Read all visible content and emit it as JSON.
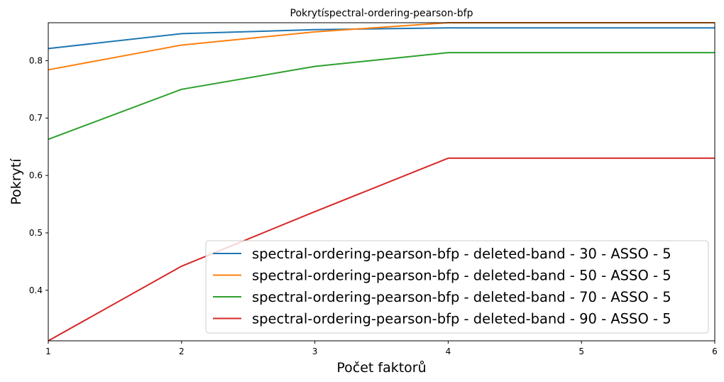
{
  "chart_data": {
    "type": "line",
    "title": "Pokrytíspectral-ordering-pearson-bfp",
    "xlabel": "Počet faktorů",
    "ylabel": "Pokrytí",
    "xlim": [
      1,
      6
    ],
    "ylim": [
      0.312,
      0.866
    ],
    "x": [
      1,
      2,
      3,
      4,
      5,
      6
    ],
    "xticks": [
      1,
      2,
      3,
      4,
      5,
      6
    ],
    "yticks": [
      0.4,
      0.5,
      0.6,
      0.7,
      0.8
    ],
    "grid": false,
    "legend_position": "lower-right",
    "series": [
      {
        "name": "spectral-ordering-pearson-bfp - deleted-band - 30 - ASSO - 5",
        "color": "#1f77b4",
        "values": [
          0.821,
          0.847,
          0.854,
          0.857,
          0.857,
          0.857
        ]
      },
      {
        "name": "spectral-ordering-pearson-bfp - deleted-band - 50 - ASSO - 5",
        "color": "#ff7f0e",
        "values": [
          0.784,
          0.827,
          0.85,
          0.866,
          0.866,
          0.866
        ]
      },
      {
        "name": "spectral-ordering-pearson-bfp - deleted-band - 70 - ASSO - 5",
        "color": "#2ca02c",
        "values": [
          0.663,
          0.75,
          0.79,
          0.814,
          0.814,
          0.814
        ]
      },
      {
        "name": "spectral-ordering-pearson-bfp - deleted-band - 90 - ASSO - 5",
        "color": "#d62728",
        "values": [
          0.312,
          0.442,
          0.537,
          0.63,
          0.63,
          0.63
        ]
      }
    ]
  }
}
